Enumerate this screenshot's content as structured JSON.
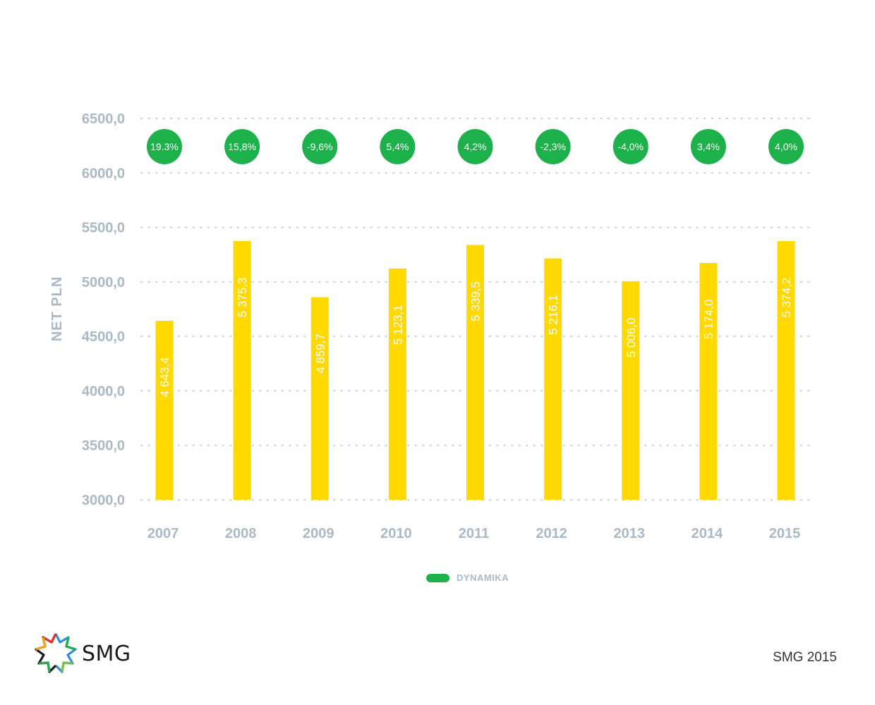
{
  "chart_data": {
    "type": "bar",
    "categories": [
      "2007",
      "2008",
      "2009",
      "2010",
      "2011",
      "2012",
      "2013",
      "2014",
      "2015"
    ],
    "values": [
      4643.4,
      5375.3,
      4859.7,
      5123.1,
      5339.5,
      5216.1,
      5006.0,
      5174.0,
      5374.2
    ],
    "value_labels": [
      "4 643,4",
      "5 375,3",
      "4 859,7",
      "5 123,1",
      "5 339,5",
      "5 216,1",
      "5 006,0",
      "5 174,0",
      "5 374,2"
    ],
    "dynamics": [
      "19.3%",
      "15,8%",
      "-9,6%",
      "5,4%",
      "4,2%",
      "-2,3%",
      "-4,0%",
      "3,4%",
      "4,0%"
    ],
    "ylabel": "NET PLN",
    "xlabel": "",
    "ylim": [
      3000,
      6500
    ],
    "y_ticks": [
      "3000,0",
      "3500,0",
      "4000,0",
      "4500,0",
      "5000,0",
      "5500,0",
      "6000,0",
      "6500,0"
    ],
    "legend": [
      {
        "name": "DYNAMIKA",
        "color": "#1db14b"
      }
    ],
    "legend_position": "bottom-center",
    "grid": true,
    "colors": {
      "bar": "#ffd900",
      "bubble": "#1db14b",
      "axis_text": "#a9bac6",
      "grid": "#c7d1d9"
    }
  },
  "footer": {
    "logo_text": "SMG",
    "note": "SMG 2015"
  },
  "icons": {
    "logo": "smg-star-logo-icon"
  }
}
